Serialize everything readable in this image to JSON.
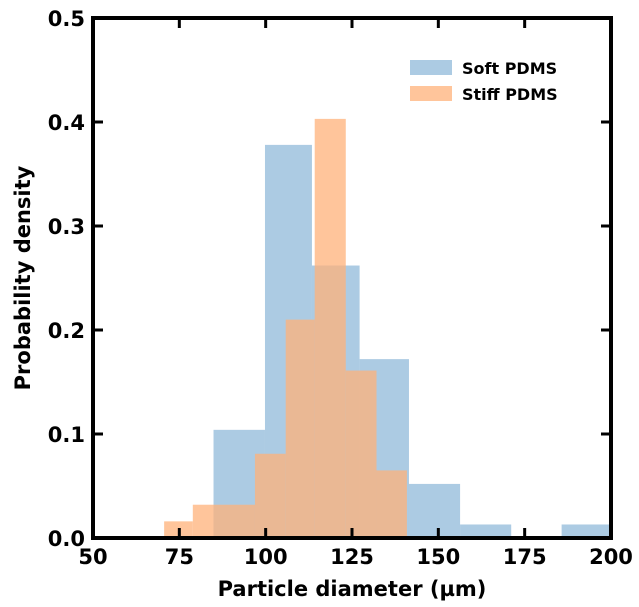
{
  "chart_data": {
    "type": "histogram",
    "xlabel": "Particle diameter (µm)",
    "ylabel": "Probability density",
    "xlim": [
      50,
      200
    ],
    "ylim": [
      0,
      0.5
    ],
    "x_ticks": [
      50,
      75,
      100,
      125,
      150,
      175,
      200
    ],
    "x_tick_labels": [
      "50",
      "75",
      "100",
      "125",
      "150",
      "175",
      "200"
    ],
    "y_ticks": [
      0.0,
      0.1,
      0.2,
      0.3,
      0.4,
      0.5
    ],
    "y_tick_labels": [
      "0.0",
      "0.1",
      "0.2",
      "0.3",
      "0.4",
      "0.5"
    ],
    "grid": false,
    "legend_position": "top-right",
    "series": [
      {
        "name": "Soft PDMS",
        "color": "#7fafd4",
        "opacity": 0.65,
        "bins": [
          {
            "x0": 84.9,
            "x1": 99.8,
            "y": 0.104
          },
          {
            "x0": 99.8,
            "x1": 113.4,
            "y": 0.378
          },
          {
            "x0": 113.4,
            "x1": 127.2,
            "y": 0.262
          },
          {
            "x0": 127.2,
            "x1": 141.5,
            "y": 0.172
          },
          {
            "x0": 141.5,
            "x1": 156.3,
            "y": 0.052
          },
          {
            "x0": 156.3,
            "x1": 171.1,
            "y": 0.013
          },
          {
            "x0": 171.1,
            "x1": 185.7,
            "y": 0.0
          },
          {
            "x0": 185.7,
            "x1": 200,
            "y": 0.013
          }
        ]
      },
      {
        "name": "Stiff PDMS",
        "color": "#ffb27a",
        "opacity": 0.75,
        "bins": [
          {
            "x0": 70.6,
            "x1": 78.9,
            "y": 0.016
          },
          {
            "x0": 78.9,
            "x1": 84.9,
            "y": 0.032
          },
          {
            "x0": 84.9,
            "x1": 96.9,
            "y": 0.032
          },
          {
            "x0": 96.9,
            "x1": 105.8,
            "y": 0.081
          },
          {
            "x0": 105.8,
            "x1": 114.2,
            "y": 0.21
          },
          {
            "x0": 114.2,
            "x1": 123.2,
            "y": 0.403
          },
          {
            "x0": 123.2,
            "x1": 132.1,
            "y": 0.161
          },
          {
            "x0": 132.1,
            "x1": 140.9,
            "y": 0.065
          }
        ]
      }
    ]
  }
}
